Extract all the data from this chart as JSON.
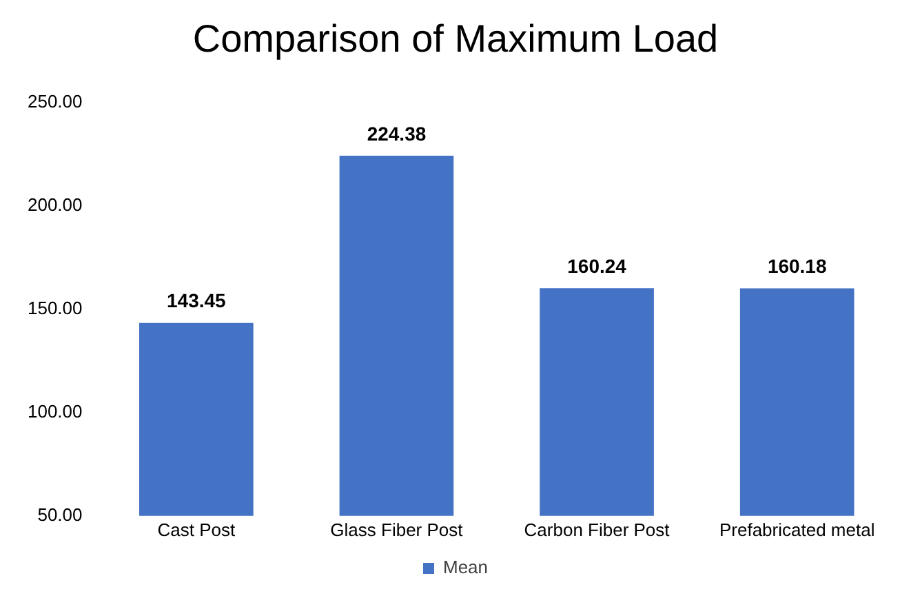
{
  "chart_data": {
    "type": "bar",
    "title": "Comparison of Maximum Load",
    "categories": [
      "Cast Post",
      "Glass Fiber Post",
      "Carbon Fiber Post",
      "Prefabricated metal"
    ],
    "series": [
      {
        "name": "Mean",
        "color": "#4472c4",
        "values": [
          143.45,
          224.38,
          160.24,
          160.18
        ]
      }
    ],
    "ylim": [
      50,
      250
    ],
    "yticks": [
      {
        "value": 50,
        "label": "50.00"
      },
      {
        "value": 100,
        "label": "100.00"
      },
      {
        "value": 150,
        "label": "150.00"
      },
      {
        "value": 200,
        "label": "200.00"
      },
      {
        "value": 250,
        "label": "250.00"
      }
    ],
    "data_labels": true,
    "grid": false,
    "legend": "bottom"
  }
}
